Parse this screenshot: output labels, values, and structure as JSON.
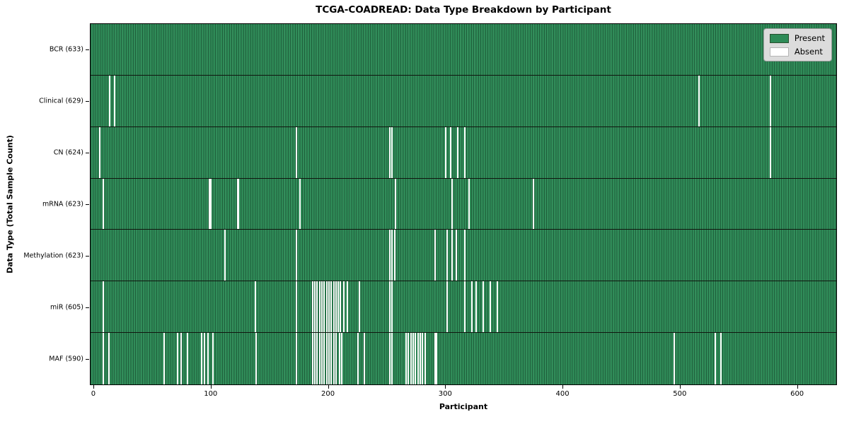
{
  "chart_data": {
    "type": "heatmap",
    "title": "TCGA-COADREAD: Data Type Breakdown by Participant",
    "xlabel": "Participant",
    "ylabel": "Data Type (Total Sample Count)",
    "x_ticks": [
      0,
      100,
      200,
      300,
      400,
      500,
      600
    ],
    "xlim": [
      -3,
      634
    ],
    "n_participants": 633,
    "grid": false,
    "legend_position": "upper right",
    "present_color": "#2e8b57",
    "absent_color": "#ffffff",
    "legend": [
      {
        "label": "Present",
        "key": "present"
      },
      {
        "label": "Absent",
        "key": "absent"
      }
    ],
    "rows": [
      {
        "label": "BCR (633)",
        "data_type": "BCR",
        "present_count": 633,
        "absent_participants": []
      },
      {
        "label": "Clinical (629)",
        "data_type": "Clinical",
        "present_count": 629,
        "absent_participants": [
          13,
          17,
          516,
          577
        ]
      },
      {
        "label": "CN (624)",
        "data_type": "CN",
        "present_count": 624,
        "absent_participants": [
          4,
          172,
          252,
          254,
          300,
          304,
          310,
          316,
          577
        ]
      },
      {
        "label": "mRNA (623)",
        "data_type": "mRNA",
        "present_count": 623,
        "absent_participants": [
          7,
          98,
          99,
          122,
          123,
          175,
          257,
          305,
          320,
          375
        ]
      },
      {
        "label": "Methylation (623)",
        "data_type": "Methylation",
        "present_count": 623,
        "absent_participants": [
          111,
          172,
          252,
          254,
          256,
          291,
          301,
          305,
          309,
          316
        ]
      },
      {
        "label": "miR (605)",
        "data_type": "miR",
        "present_count": 605,
        "absent_participants": [
          7,
          137,
          172,
          186,
          188,
          190,
          192,
          194,
          196,
          198,
          200,
          202,
          204,
          206,
          208,
          210,
          213,
          216,
          226,
          252,
          254,
          301,
          316,
          322,
          326,
          332,
          338,
          344
        ]
      },
      {
        "label": "MAF (590)",
        "data_type": "MAF",
        "present_count": 590,
        "absent_participants": [
          7,
          12,
          59,
          71,
          74,
          79,
          91,
          94,
          97,
          101,
          138,
          172,
          186,
          188,
          190,
          192,
          194,
          196,
          198,
          200,
          202,
          204,
          206,
          209,
          211,
          225,
          230,
          252,
          254,
          266,
          268,
          270,
          272,
          274,
          276,
          278,
          280,
          282,
          291,
          292,
          495,
          530,
          535
        ]
      }
    ]
  }
}
